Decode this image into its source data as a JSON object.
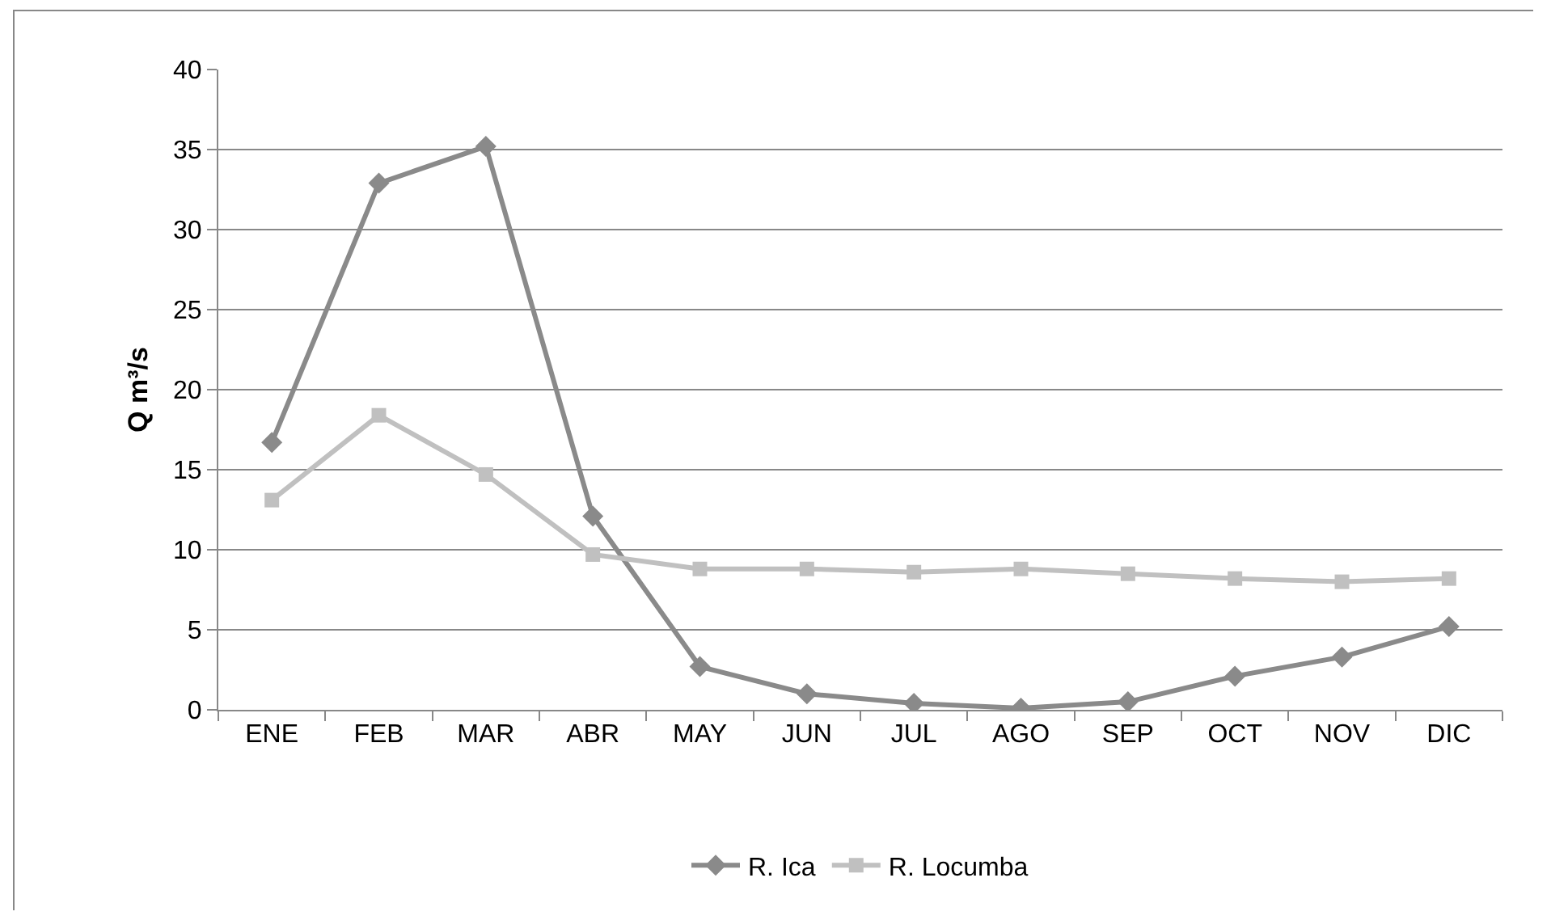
{
  "chart_data": {
    "type": "line",
    "ylabel": "Q m³/s",
    "categories": [
      "ENE",
      "FEB",
      "MAR",
      "ABR",
      "MAY",
      "JUN",
      "JUL",
      "AGO",
      "SEP",
      "OCT",
      "NOV",
      "DIC"
    ],
    "series": [
      {
        "name": "R. Ica",
        "color": "#8a8a8a",
        "marker": "diamond",
        "values": [
          16.7,
          32.9,
          35.2,
          12.1,
          2.7,
          1.0,
          0.4,
          0.1,
          0.5,
          2.1,
          3.3,
          5.2
        ]
      },
      {
        "name": "R. Locumba",
        "color": "#c0c0c0",
        "marker": "square",
        "values": [
          13.1,
          18.4,
          14.7,
          9.7,
          8.8,
          8.8,
          8.6,
          8.8,
          8.5,
          8.2,
          8.0,
          8.2
        ]
      }
    ],
    "ylim": [
      0,
      40
    ],
    "yticks": [
      0,
      5,
      10,
      15,
      20,
      25,
      30,
      35,
      40
    ],
    "grid": "y",
    "legend": "bottom"
  }
}
